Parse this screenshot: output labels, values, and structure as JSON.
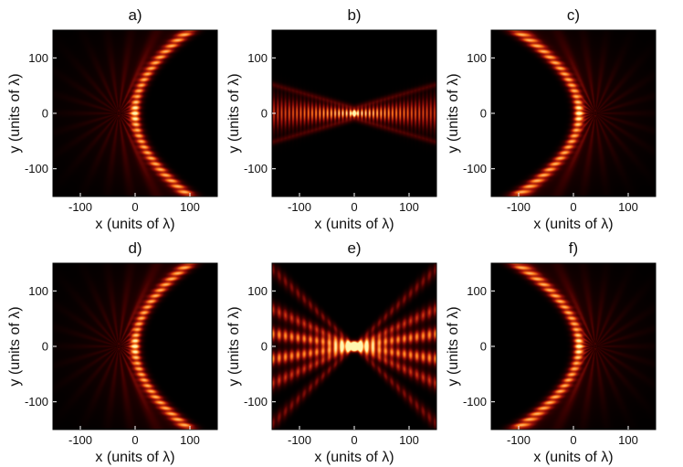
{
  "chart_data": [
    {
      "panel": "a)",
      "type": "heatmap",
      "pattern": "parabola-open-right",
      "vertex": [
        0,
        0
      ],
      "xlabel": "x (units of λ)",
      "ylabel": "y (units of λ)",
      "xlim": [
        -150,
        150
      ],
      "ylim": [
        -150,
        150
      ],
      "xticks": [
        -100,
        0,
        100
      ],
      "yticks": [
        -100,
        0,
        100
      ],
      "colormap": [
        "#000000",
        "#3d0000",
        "#a0120a",
        "#ff7a1a",
        "#fff6b0"
      ]
    },
    {
      "panel": "b)",
      "type": "heatmap",
      "pattern": "horizontal-beam",
      "vertex": [
        0,
        0
      ],
      "xlabel": "x (units of λ)",
      "ylabel": "y (units of λ)",
      "xlim": [
        -150,
        150
      ],
      "ylim": [
        -150,
        150
      ],
      "xticks": [
        -100,
        0,
        100
      ],
      "yticks": [
        -100,
        0,
        100
      ],
      "colormap": [
        "#000000",
        "#3d0000",
        "#a0120a",
        "#ff7a1a",
        "#fff6b0"
      ]
    },
    {
      "panel": "c)",
      "type": "heatmap",
      "pattern": "parabola-open-left",
      "vertex": [
        10,
        0
      ],
      "xlabel": "x (units of λ)",
      "ylabel": "y (units of λ)",
      "xlim": [
        -150,
        150
      ],
      "ylim": [
        -150,
        150
      ],
      "xticks": [
        -100,
        0,
        100
      ],
      "yticks": [
        -100,
        0,
        100
      ],
      "colormap": [
        "#000000",
        "#3d0000",
        "#a0120a",
        "#ff7a1a",
        "#fff6b0"
      ]
    },
    {
      "panel": "d)",
      "type": "heatmap",
      "pattern": "parabola-open-right",
      "vertex": [
        0,
        0
      ],
      "xlabel": "x (units of λ)",
      "ylabel": "y (units of λ)",
      "xlim": [
        -150,
        150
      ],
      "ylim": [
        -150,
        150
      ],
      "xticks": [
        -100,
        0,
        100
      ],
      "yticks": [
        -100,
        0,
        100
      ],
      "colormap": [
        "#000000",
        "#3d0000",
        "#a0120a",
        "#ff7a1a",
        "#fff6b0"
      ]
    },
    {
      "panel": "e)",
      "type": "heatmap",
      "pattern": "crossing-beams",
      "vertex": [
        0,
        0
      ],
      "xlabel": "x (units of λ)",
      "ylabel": "y (units of λ)",
      "xlim": [
        -150,
        150
      ],
      "ylim": [
        -150,
        150
      ],
      "xticks": [
        -100,
        0,
        100
      ],
      "yticks": [
        -100,
        0,
        100
      ],
      "colormap": [
        "#000000",
        "#3d0000",
        "#a0120a",
        "#ff7a1a",
        "#fff6b0"
      ]
    },
    {
      "panel": "f)",
      "type": "heatmap",
      "pattern": "parabola-open-left",
      "vertex": [
        10,
        0
      ],
      "xlabel": "x (units of λ)",
      "ylabel": "y (units of λ)",
      "xlim": [
        -150,
        150
      ],
      "ylim": [
        -150,
        150
      ],
      "xticks": [
        -100,
        0,
        100
      ],
      "yticks": [
        -100,
        0,
        100
      ],
      "colormap": [
        "#000000",
        "#3d0000",
        "#a0120a",
        "#ff7a1a",
        "#fff6b0"
      ]
    }
  ]
}
